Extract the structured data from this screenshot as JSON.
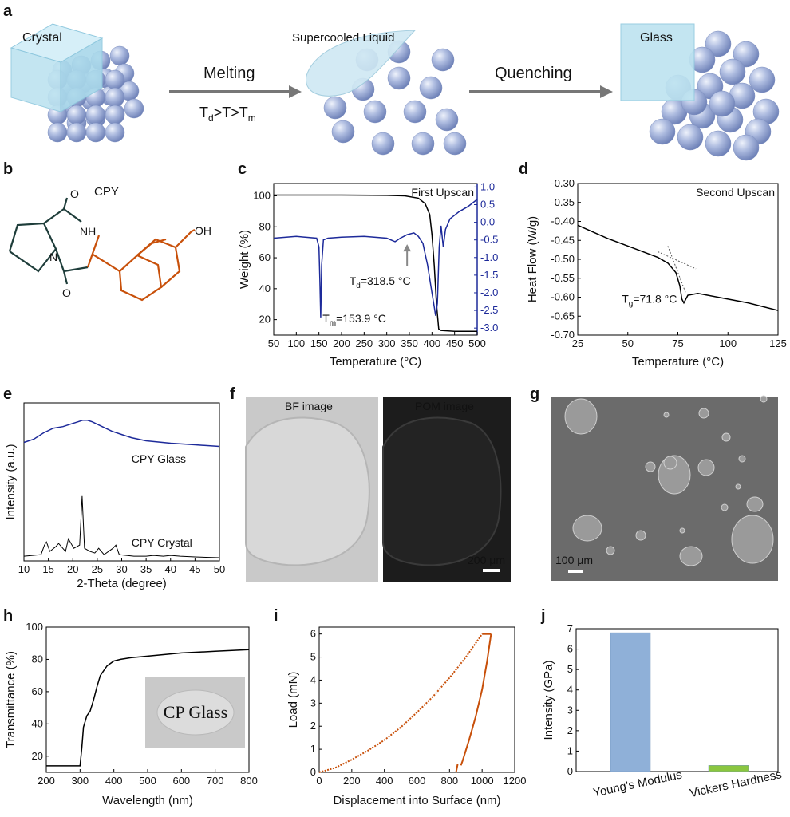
{
  "colors": {
    "blue_trace": "#1d2a9a",
    "orange": "#c8500a",
    "bar_blue": "#8fb0d8",
    "bar_green": "#8ac640",
    "sphere": "#a9b8dd",
    "crystal": "#bde3f0"
  },
  "panel_a": {
    "label": "a",
    "crystal": "Crystal",
    "liquid": "Supercooled Liquid",
    "glass": "Glass",
    "melting": "Melting",
    "quenching": "Quenching",
    "condition_main": "T",
    "condition_d": "d",
    "condition_gt1": ">T>T",
    "condition_m": "m"
  },
  "panel_b": {
    "label": "b",
    "title": "CPY",
    "OH": "OH",
    "NH": "NH",
    "N": "N",
    "O_top": "O",
    "O_bottom": "O"
  },
  "panel_c": {
    "label": "c",
    "legend": "First Upscan",
    "td_main": "T",
    "td_sub": "d",
    "td_val": "=318.5 °C",
    "tm_main": "T",
    "tm_sub": "m",
    "tm_val": "=153.9 °C"
  },
  "panel_d": {
    "label": "d",
    "legend": "Second Upscan",
    "tg_main": "T",
    "tg_sub": "g",
    "tg_val": "=71.8 °C"
  },
  "panel_e": {
    "label": "e",
    "glass_label": "CPY Glass",
    "crystal_label": "CPY Crystal"
  },
  "panel_f": {
    "label": "f",
    "bf": "BF image",
    "pom": "POM image",
    "scale": "200 μm"
  },
  "panel_g": {
    "label": "g",
    "scale": "100 μm"
  },
  "panel_h": {
    "label": "h",
    "inset": "CP Glass"
  },
  "panel_i": {
    "label": "i"
  },
  "panel_j": {
    "label": "j"
  },
  "chart_data": [
    {
      "id": "c",
      "type": "line",
      "xlabel": "Temperature (°C)",
      "ylabel": "Weight (%)",
      "xlim": [
        50,
        500
      ],
      "ylim": [
        10,
        108
      ],
      "y2lim": [
        -3.2,
        1.1
      ],
      "xticks": [
        "50",
        "100",
        "150",
        "200",
        "250",
        "300",
        "350",
        "400",
        "450",
        "500"
      ],
      "yticks": [
        "20",
        "40",
        "60",
        "80",
        "100"
      ],
      "y2ticks": [
        "1.0",
        "0.5",
        "0.0",
        "-0.5",
        "-1.0",
        "-1.5",
        "-2.0",
        "-2.5",
        "-3.0"
      ],
      "series": [
        {
          "axis": "left",
          "x": [
            50,
            200,
            300,
            340,
            370,
            385,
            395,
            400,
            405,
            410,
            415,
            420,
            450,
            500
          ],
          "values": [
            100.5,
            100.5,
            100.3,
            100,
            98.5,
            95,
            88,
            75,
            55,
            30,
            14,
            13,
            12.5,
            12.5
          ]
        },
        {
          "axis": "right",
          "x": [
            50,
            100,
            145,
            150,
            152,
            153.9,
            156,
            160,
            170,
            200,
            250,
            300,
            318.5,
            330,
            345,
            360,
            370,
            380,
            385,
            390,
            395,
            400,
            405,
            408,
            412,
            416,
            420,
            425,
            430,
            440,
            460,
            480,
            500
          ],
          "values": [
            -0.45,
            -0.4,
            -0.45,
            -0.7,
            -1.6,
            -2.7,
            -1.2,
            -0.5,
            -0.45,
            -0.42,
            -0.4,
            -0.45,
            -0.55,
            -0.45,
            -0.35,
            -0.3,
            -0.4,
            -0.6,
            -0.9,
            -1.2,
            -1.6,
            -2.0,
            -2.4,
            -2.65,
            -2.3,
            -0.7,
            -0.1,
            -0.7,
            -0.2,
            0.1,
            0.3,
            0.45,
            0.65
          ]
        }
      ]
    },
    {
      "id": "d",
      "type": "line",
      "xlabel": "Temperature (°C)",
      "ylabel": "Heat Flow (W/g)",
      "xlim": [
        25,
        125
      ],
      "ylim": [
        -0.7,
        -0.3
      ],
      "xticks": [
        "25",
        "50",
        "75",
        "100",
        "125"
      ],
      "yticks": [
        "-0.30",
        "-0.35",
        "-0.40",
        "-0.45",
        "-0.50",
        "-0.55",
        "-0.60",
        "-0.65",
        "-0.70"
      ],
      "series": [
        {
          "x": [
            25,
            40,
            55,
            65,
            70,
            74,
            76,
            77,
            78,
            80,
            85,
            90,
            100,
            110,
            125
          ],
          "values": [
            -0.41,
            -0.445,
            -0.475,
            -0.495,
            -0.51,
            -0.535,
            -0.57,
            -0.605,
            -0.615,
            -0.595,
            -0.59,
            -0.595,
            -0.605,
            -0.615,
            -0.635
          ]
        }
      ]
    },
    {
      "id": "e",
      "type": "line",
      "xlabel": "2-Theta (degree)",
      "ylabel": "Intensity (a.u.)",
      "xlim": [
        10,
        50
      ],
      "ylim": [
        0,
        100
      ],
      "xticks": [
        "10",
        "15",
        "20",
        "25",
        "30",
        "35",
        "40",
        "45",
        "50"
      ],
      "series": [
        {
          "name": "CPY Glass",
          "x": [
            10,
            12,
            14,
            16,
            18,
            20,
            21,
            22,
            23,
            24,
            26,
            28,
            30,
            32,
            35,
            40,
            45,
            50
          ],
          "values": [
            75,
            77,
            81,
            84,
            85,
            87,
            88,
            89,
            89,
            88,
            85,
            82,
            80,
            78,
            76,
            74.5,
            73.5,
            72.5
          ]
        },
        {
          "name": "CPY Crystal",
          "x": [
            10,
            13.5,
            14.2,
            14.6,
            15.3,
            16.5,
            17.1,
            18.5,
            19.1,
            20.2,
            21.4,
            21.9,
            22.4,
            23.5,
            24.5,
            25.3,
            26.4,
            28.2,
            28.8,
            29.5,
            32.5,
            35,
            36.5,
            38.5,
            40,
            42,
            45,
            50
          ],
          "values": [
            3,
            4,
            10,
            12,
            6,
            9,
            11,
            6,
            14,
            8,
            10,
            41,
            8,
            6,
            5,
            8,
            4,
            8,
            10,
            4,
            3,
            3,
            3.5,
            3,
            3.5,
            3,
            2.5,
            2
          ]
        }
      ]
    },
    {
      "id": "h",
      "type": "line",
      "xlabel": "Wavelength (nm)",
      "ylabel": "Transmittance (%)",
      "xlim": [
        200,
        800
      ],
      "ylim": [
        10,
        100
      ],
      "xticks": [
        "200",
        "300",
        "400",
        "500",
        "600",
        "700",
        "800"
      ],
      "yticks": [
        "20",
        "40",
        "60",
        "80",
        "100"
      ],
      "series": [
        {
          "x": [
            200,
            290,
            300,
            305,
            310,
            320,
            330,
            340,
            350,
            360,
            380,
            400,
            420,
            450,
            500,
            550,
            600,
            700,
            800
          ],
          "values": [
            14,
            14,
            14,
            25,
            38,
            45,
            48,
            55,
            63,
            70,
            76,
            79,
            80,
            81,
            82,
            83,
            84,
            85,
            86
          ]
        }
      ]
    },
    {
      "id": "i",
      "type": "line",
      "xlabel": "Displacement into Surface (nm)",
      "ylabel": "Load (mN)",
      "xlim": [
        0,
        1200
      ],
      "ylim": [
        0,
        6.3
      ],
      "xticks": [
        "0",
        "200",
        "400",
        "600",
        "800",
        "1000",
        "1200"
      ],
      "yticks": [
        "0",
        "1",
        "2",
        "3",
        "4",
        "5",
        "6"
      ],
      "series": [
        {
          "name": "loading",
          "x": [
            0,
            100,
            200,
            300,
            400,
            500,
            600,
            700,
            800,
            900,
            1000
          ],
          "values": [
            0,
            0.2,
            0.55,
            0.95,
            1.4,
            1.95,
            2.6,
            3.3,
            4.1,
            5.0,
            6.0
          ]
        },
        {
          "name": "hold",
          "x": [
            1000,
            1020,
            1040,
            1055
          ],
          "values": [
            6,
            6,
            6,
            6
          ]
        },
        {
          "name": "unloading",
          "x": [
            1055,
            1030,
            1000,
            960,
            920,
            880,
            870
          ],
          "values": [
            6,
            4.8,
            3.6,
            2.4,
            1.4,
            0.5,
            0.3
          ]
        },
        {
          "name": "tail",
          "x": [
            840,
            850
          ],
          "values": [
            0,
            0.35
          ]
        }
      ]
    },
    {
      "id": "j",
      "type": "bar",
      "ylabel": "Intensity (GPa)",
      "categories": [
        "Young’s Modulus",
        "Vickers Hardness"
      ],
      "values": [
        6.8,
        0.3
      ],
      "ylim": [
        0,
        7
      ],
      "yticks": [
        "0",
        "1",
        "2",
        "3",
        "4",
        "5",
        "6",
        "7"
      ]
    }
  ]
}
